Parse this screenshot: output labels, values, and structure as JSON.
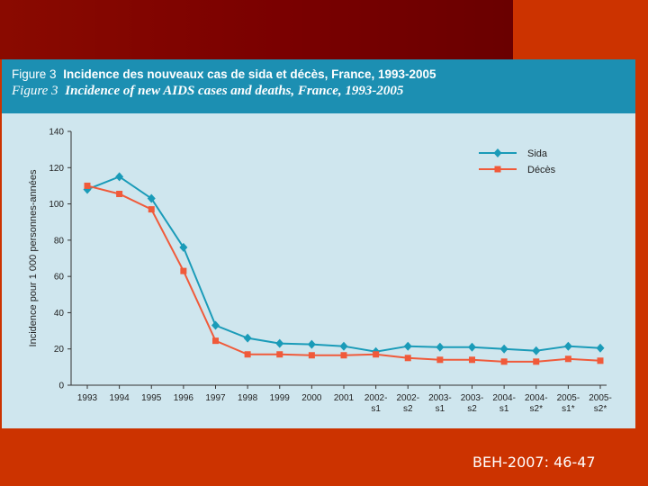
{
  "figure": {
    "fr_number": "Figure 3",
    "fr_title": "Incidence des nouveaux cas de sida et décès, France, 1993-2005",
    "en_number": "Figure 3",
    "en_title": "Incidence of new AIDS cases and deaths, France, 1993-2005"
  },
  "footer": {
    "reference": "BEH-2007: 46-47"
  },
  "colors": {
    "sida": "#1a9bb8",
    "deces": "#f05a3a",
    "header": "#1c8fb2",
    "plot_bg": "#cfe6ee"
  },
  "chart_data": {
    "type": "line",
    "ylabel": "Incidence pour 1 000 personnes-années",
    "xlabel": "",
    "ylim": [
      0,
      140
    ],
    "yticks": [
      0,
      20,
      40,
      60,
      80,
      100,
      120,
      140
    ],
    "categories": [
      [
        "1993"
      ],
      [
        "1994"
      ],
      [
        "1995"
      ],
      [
        "1996"
      ],
      [
        "1997"
      ],
      [
        "1998"
      ],
      [
        "1999"
      ],
      [
        "2000"
      ],
      [
        "2001"
      ],
      [
        "2002-",
        "s1"
      ],
      [
        "2002-",
        "s2"
      ],
      [
        "2003-",
        "s1"
      ],
      [
        "2003-",
        "s2"
      ],
      [
        "2004-",
        "s1"
      ],
      [
        "2004-",
        "s2*"
      ],
      [
        "2005-",
        "s1*"
      ],
      [
        "2005-",
        "s2*"
      ]
    ],
    "series": [
      {
        "name": "Sida",
        "marker": "diamond",
        "values": [
          108,
          115,
          103,
          76,
          33,
          26,
          23,
          22.5,
          21.5,
          18.5,
          21.5,
          21,
          21,
          20,
          19,
          21.5,
          20.5
        ]
      },
      {
        "name": "Décès",
        "marker": "square",
        "values": [
          110,
          105.5,
          97,
          63,
          24.5,
          17,
          17,
          16.5,
          16.5,
          17,
          15,
          14,
          14,
          13,
          13,
          14.5,
          13.5
        ]
      }
    ],
    "legend_position": "top-right"
  }
}
